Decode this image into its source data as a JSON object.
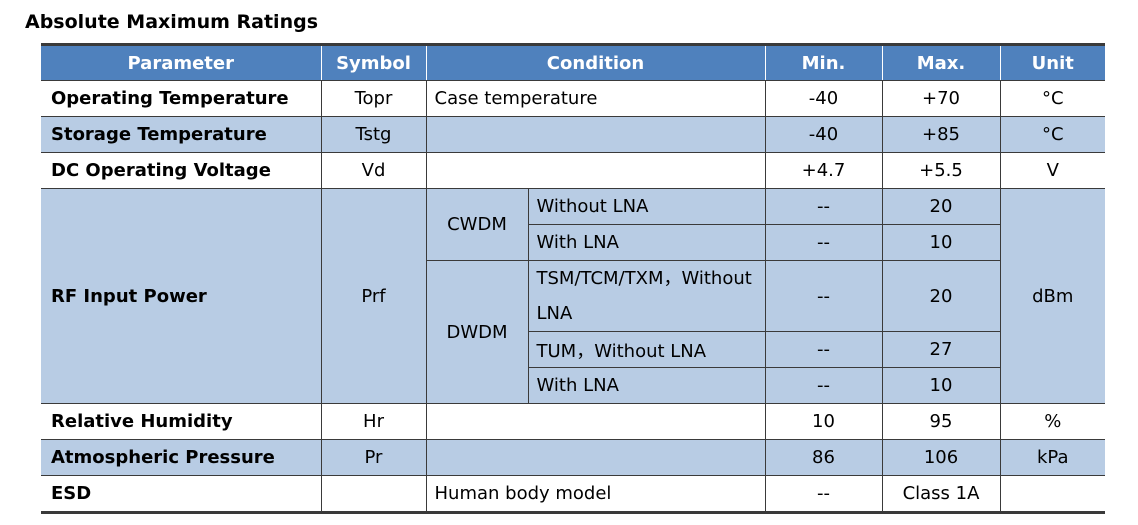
{
  "title": "Absolute Maximum Ratings",
  "headers": {
    "parameter": "Parameter",
    "symbol": "Symbol",
    "condition": "Condition",
    "min": "Min.",
    "max": "Max.",
    "unit": "Unit"
  },
  "rows": {
    "operating_temperature": {
      "parameter": "Operating Temperature",
      "symbol": "Topr",
      "condition": "Case temperature",
      "min": "-40",
      "max": "+70",
      "unit": "°C"
    },
    "storage_temperature": {
      "parameter": "Storage Temperature",
      "symbol": "Tstg",
      "condition": "",
      "min": "-40",
      "max": "+85",
      "unit": "°C"
    },
    "dc_operating_voltage": {
      "parameter": "DC Operating Voltage",
      "symbol": "Vd",
      "condition": "",
      "min": "+4.7",
      "max": "+5.5",
      "unit": "V"
    },
    "rf_input_power": {
      "parameter": "RF Input Power",
      "symbol": "Prf",
      "unit": "dBm",
      "groups": [
        {
          "name": "CWDM",
          "conditions": [
            {
              "condition": "Without LNA",
              "min": "--",
              "max": "20"
            },
            {
              "condition": "With LNA",
              "min": "--",
              "max": "10"
            }
          ]
        },
        {
          "name": "DWDM",
          "conditions": [
            {
              "condition": "TSM/TCM/TXM，Without LNA",
              "min": "--",
              "max": "20"
            },
            {
              "condition": "TUM，Without LNA",
              "min": "--",
              "max": "27"
            },
            {
              "condition": "With LNA",
              "min": "--",
              "max": "10"
            }
          ]
        }
      ]
    },
    "relative_humidity": {
      "parameter": "Relative Humidity",
      "symbol": "Hr",
      "condition": "",
      "min": "10",
      "max": "95",
      "unit": "%"
    },
    "atmospheric_pressure": {
      "parameter": "Atmospheric Pressure",
      "symbol": "Pr",
      "condition": "",
      "min": "86",
      "max": "106",
      "unit": "kPa"
    },
    "esd": {
      "parameter": "ESD",
      "symbol": "",
      "condition": "Human body model",
      "min": "--",
      "max": "Class 1A",
      "unit": ""
    }
  }
}
